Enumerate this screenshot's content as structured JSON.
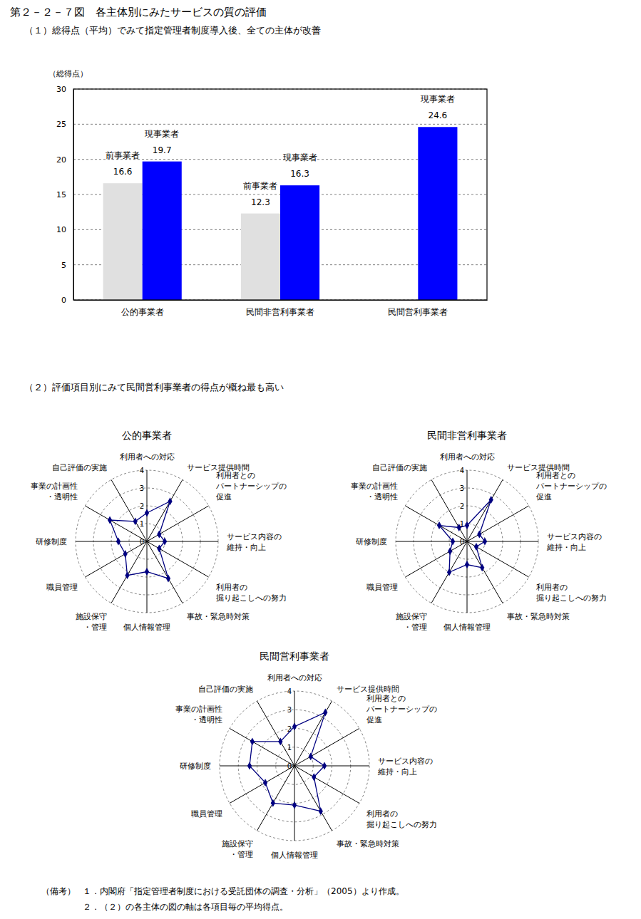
{
  "title": "第２－２－７図　各主体別にみたサービスの質の評価",
  "section_title": "（２）評価項目別にみて民間営利事業者の得点が概ね最も高い",
  "notes_label": "（備考）",
  "notes": [
    "１．内閣府「指定管理者制度における受託団体の調査・分析」（2005）より作成。",
    "２．（２）の各主体の図の軸は各項目毎の平均得点。"
  ],
  "chart_data": [
    {
      "type": "bar",
      "title": "（１）総得点（平均）でみて指定管理者制度導入後、全ての主体が改善",
      "y_label": "（総得点）",
      "categories": [
        "公的事業者",
        "民間非営利事業者",
        "民間営利事業者"
      ],
      "series": [
        {
          "name": "前事業者",
          "color": "#e0e0e0",
          "values": [
            16.6,
            12.3,
            null
          ]
        },
        {
          "name": "現事業者",
          "color": "#0000ff",
          "values": [
            19.7,
            16.3,
            24.6
          ]
        }
      ],
      "ylim": [
        0,
        30
      ],
      "yticks": [
        0,
        5,
        10,
        15,
        20,
        25,
        30
      ],
      "grid": true,
      "data_labels": true
    },
    {
      "type": "radar",
      "title": "公的事業者",
      "categories": [
        "利用者への対応",
        "サービス提供時間",
        "利用者との\nパートナーシップの\n促進",
        "サービス内容の\n維持・向上",
        "利用者の\n掘り起こしへの努力",
        "事故・緊急時対策",
        "個人情報管理",
        "施設保守\n・管理",
        "職員管理",
        "研修制度",
        "事業の計画性\n・透明性",
        "自己評価の実施"
      ],
      "values": [
        1.6,
        2.6,
        0.8,
        1.0,
        0.8,
        2.4,
        1.7,
        2.2,
        1.4,
        1.6,
        2.4,
        1.3
      ],
      "color": "#000080",
      "marker": "diamond",
      "ylim": [
        0,
        4
      ],
      "yticks": [
        0,
        1,
        2,
        3,
        4
      ],
      "grid": true
    },
    {
      "type": "radar",
      "title": "民間非営利事業者",
      "categories": [
        "利用者への対応",
        "サービス提供時間",
        "利用者との\nパートナーシップの\n促進",
        "サービス内容の\n維持・向上",
        "利用者の\n掘り起こしへの努力",
        "事故・緊急時対策",
        "個人情報管理",
        "施設保守\n・管理",
        "職員管理",
        "研修制度",
        "事業の計画性\n・透明性",
        "自己評価の実施"
      ],
      "values": [
        0.9,
        2.7,
        0.8,
        1.0,
        0.6,
        1.7,
        1.3,
        2.0,
        1.1,
        0.8,
        1.8,
        0.9
      ],
      "color": "#000080",
      "marker": "diamond",
      "ylim": [
        0,
        4
      ],
      "yticks": [
        0,
        1,
        2,
        3,
        4
      ],
      "grid": true
    },
    {
      "type": "radar",
      "title": "民間営利事業者",
      "categories": [
        "利用者への対応",
        "サービス提供時間",
        "利用者との\nパートナーシップの\n促進",
        "サービス内容の\n維持・向上",
        "利用者の\n掘り起こしへの努力",
        "事故・緊急時対策",
        "個人情報管理",
        "施設保守\n・管理",
        "職員管理",
        "研修制度",
        "事業の計画性\n・透明性",
        "自己評価の実施"
      ],
      "values": [
        2.1,
        3.3,
        1.0,
        1.6,
        1.2,
        2.8,
        2.1,
        2.3,
        1.8,
        2.4,
        2.6,
        1.5
      ],
      "color": "#000080",
      "marker": "diamond",
      "ylim": [
        0,
        4
      ],
      "yticks": [
        0,
        1,
        2,
        3,
        4
      ],
      "grid": true
    }
  ]
}
